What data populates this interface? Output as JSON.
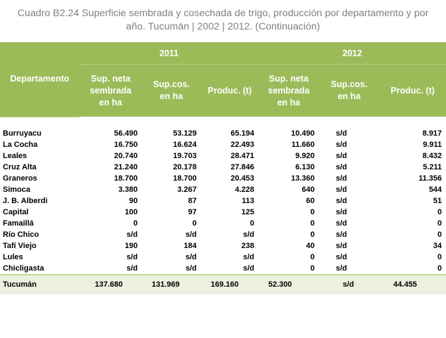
{
  "title_line1": "Cuadro B2.24 Superficie sembrada y cosechada de trigo, producción por departamento y por",
  "title_line2": "año. Tucumán | 2002 | 2012. (Continuación)",
  "header": {
    "dept": "Departamento",
    "year1": "2011",
    "year2": "2012",
    "cols": [
      [
        "Sup. neta",
        "sembrada",
        "en ha"
      ],
      [
        "Sup.cos.",
        "en ha"
      ],
      [
        "Produc. (t)"
      ],
      [
        "Sup. neta",
        "sembrada",
        "en ha"
      ],
      [
        "Sup.cos.",
        "en ha"
      ],
      [
        "Produc. (t)"
      ]
    ]
  },
  "rows": [
    [
      "Burruyacu",
      "56.490",
      "53.129",
      "65.194",
      "10.490",
      "s/d",
      "8.917"
    ],
    [
      "La Cocha",
      "16.750",
      "16.624",
      "22.493",
      "11.660",
      "s/d",
      "9.911"
    ],
    [
      "Leales",
      "20.740",
      "19.703",
      "28.471",
      "9.920",
      "s/d",
      "8.432"
    ],
    [
      "Cruz Alta",
      "21.240",
      "20.178",
      "27.846",
      "6.130",
      "s/d",
      "5.211"
    ],
    [
      "Graneros",
      "18.700",
      "18.700",
      "20.453",
      "13.360",
      "s/d",
      "11.356"
    ],
    [
      "Simoca",
      "3.380",
      "3.267",
      "4.228",
      "640",
      "s/d",
      "544"
    ],
    [
      "J. B. Alberdi",
      "90",
      "87",
      "113",
      "60",
      "s/d",
      "51"
    ],
    [
      "Capital",
      "100",
      "97",
      "125",
      "0",
      "s/d",
      "0"
    ],
    [
      "Famaillá",
      "0",
      "0",
      "0",
      "0",
      "s/d",
      "0"
    ],
    [
      "Río Chico",
      "s/d",
      "s/d",
      "s/d",
      "0",
      "s/d",
      "0"
    ],
    [
      "Tafí Viejo",
      "190",
      "184",
      "238",
      "40",
      "s/d",
      "34"
    ],
    [
      "Lules",
      "s/d",
      "s/d",
      "s/d",
      "0",
      "s/d",
      "0"
    ],
    [
      "Chicligasta",
      "s/d",
      "s/d",
      "s/d",
      "0",
      "s/d",
      "0"
    ]
  ],
  "total": [
    "Tucumán",
    "137.680",
    "131.969",
    "169.160",
    "52.300",
    "s/d",
    "44.455"
  ],
  "colors": {
    "header_bg": "#9bbb59",
    "total_bg": "#ebf1de",
    "title": "#7f7f7f"
  }
}
